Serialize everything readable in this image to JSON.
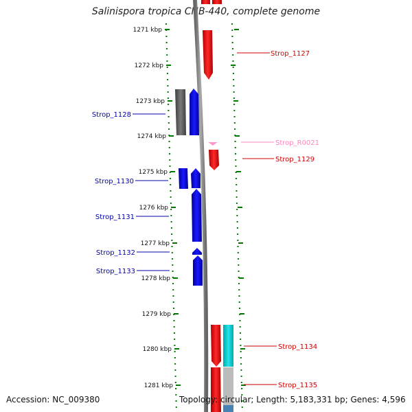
{
  "title": "Salinispora tropica CNB-440, complete genome",
  "accession_label": "Accession: NC_009380",
  "topology_label": "Topology: circular; Length: 5,183,331 bp; Genes: 4,596",
  "scale": {
    "unit": "kbp",
    "ticks": [
      "1271 kbp",
      "1272 kbp",
      "1273 kbp",
      "1274 kbp",
      "1275 kbp",
      "1276 kbp",
      "1277 kbp",
      "1278 kbp",
      "1279 kbp",
      "1280 kbp",
      "1281 kbp"
    ]
  },
  "colors": {
    "forward": "#ee0000",
    "reverse": "#0000ee",
    "rna": "#ff99cc",
    "pseudo": "#555555",
    "cyan": "#00c8cc",
    "grey": "#bbbbbb",
    "steel": "#4682b4",
    "tick": "#007700",
    "backbone": "#888888"
  },
  "labels": [
    {
      "text": "Strop_1127",
      "side": "right",
      "color": "#cc0000"
    },
    {
      "text": "Strop_1128",
      "side": "left",
      "color": "#0000aa"
    },
    {
      "text": "Strop_R0021",
      "side": "right",
      "color": "#ff88bb"
    },
    {
      "text": "Strop_1129",
      "side": "right",
      "color": "#cc0000"
    },
    {
      "text": "Strop_1130",
      "side": "left",
      "color": "#0000aa"
    },
    {
      "text": "Strop_1131",
      "side": "left",
      "color": "#0000aa"
    },
    {
      "text": "Strop_1132",
      "side": "left",
      "color": "#0000aa"
    },
    {
      "text": "Strop_1133",
      "side": "left",
      "color": "#0000aa"
    },
    {
      "text": "Strop_1134",
      "side": "right",
      "color": "#cc0000"
    },
    {
      "text": "Strop_1135",
      "side": "right",
      "color": "#cc0000"
    }
  ]
}
